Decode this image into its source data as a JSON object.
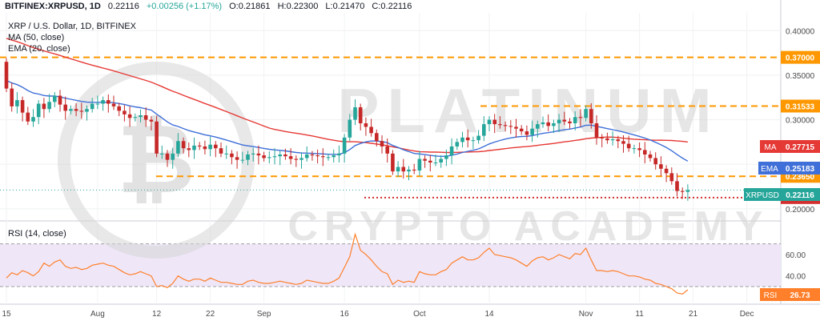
{
  "header": {
    "symbol": "BITFINEX:XRPUSD, 1D",
    "last": "0.22116",
    "change": "+0.00256 (+1.17%)",
    "o_label": "O:",
    "o": "0.21861",
    "h_label": "H:",
    "h": "0.22300",
    "l_label": "L:",
    "l": "0.21470",
    "c_label": "C:",
    "c": "0.22116"
  },
  "legend": {
    "title": "XRP / U.S. Dollar, 1D, BITFINEX",
    "ma": "MA (50, close)",
    "ema": "EMA (20, close)",
    "rsi": "RSI (14, close)"
  },
  "watermark": "PLATINUM CRYPTO ACADEMY",
  "colors": {
    "up": "#26a69a",
    "down": "#c62828",
    "ma": "#e53935",
    "ema": "#3f6fd8",
    "level": "#ff9800",
    "support": "#d32f2f",
    "rsi": "#ff7f2a",
    "rsi_band": "#efe7f8"
  },
  "chart_data": [
    {
      "type": "candlestick",
      "title": "XRP / U.S. Dollar, 1D, BITFINEX",
      "ylim": [
        0.19,
        0.42
      ],
      "y_ticks": [
        "0.20000",
        "0.25000",
        "0.30000",
        "0.35000",
        "0.40000"
      ],
      "x_ticks": [
        {
          "label": "15",
          "i": 0
        },
        {
          "label": "Aug",
          "i": 17
        },
        {
          "label": "12",
          "i": 28
        },
        {
          "label": "22",
          "i": 38
        },
        {
          "label": "Sep",
          "i": 48
        },
        {
          "label": "16",
          "i": 63
        },
        {
          "label": "Oct",
          "i": 77
        },
        {
          "label": "14",
          "i": 90
        },
        {
          "label": "Nov",
          "i": 108
        },
        {
          "label": "11",
          "i": 118
        },
        {
          "label": "21",
          "i": 128
        },
        {
          "label": "Dec",
          "i": 138
        }
      ],
      "close": [
        0.335,
        0.315,
        0.322,
        0.308,
        0.298,
        0.303,
        0.318,
        0.312,
        0.32,
        0.327,
        0.317,
        0.31,
        0.312,
        0.31,
        0.309,
        0.312,
        0.318,
        0.318,
        0.322,
        0.318,
        0.315,
        0.31,
        0.306,
        0.302,
        0.303,
        0.305,
        0.3,
        0.298,
        0.262,
        0.262,
        0.255,
        0.262,
        0.276,
        0.268,
        0.266,
        0.271,
        0.27,
        0.267,
        0.272,
        0.268,
        0.262,
        0.262,
        0.258,
        0.255,
        0.255,
        0.261,
        0.262,
        0.26,
        0.257,
        0.258,
        0.259,
        0.261,
        0.259,
        0.256,
        0.255,
        0.257,
        0.261,
        0.26,
        0.259,
        0.258,
        0.258,
        0.26,
        0.262,
        0.28,
        0.3,
        0.314,
        0.296,
        0.292,
        0.285,
        0.276,
        0.27,
        0.262,
        0.242,
        0.247,
        0.242,
        0.244,
        0.243,
        0.256,
        0.254,
        0.252,
        0.252,
        0.256,
        0.26,
        0.27,
        0.275,
        0.28,
        0.277,
        0.277,
        0.282,
        0.295,
        0.3,
        0.295,
        0.294,
        0.293,
        0.292,
        0.29,
        0.287,
        0.283,
        0.29,
        0.295,
        0.297,
        0.293,
        0.296,
        0.3,
        0.298,
        0.296,
        0.303,
        0.302,
        0.312,
        0.296,
        0.28,
        0.279,
        0.277,
        0.278,
        0.276,
        0.273,
        0.268,
        0.268,
        0.266,
        0.261,
        0.257,
        0.25,
        0.245,
        0.24,
        0.231,
        0.22,
        0.219,
        0.221
      ],
      "open_note": "open = previous close",
      "ma50": {
        "label": "MA",
        "last": "0.27715"
      },
      "ema20": {
        "label": "EMA",
        "last": "0.25183"
      },
      "levels": [
        {
          "value": 0.37,
          "label": "0.37000",
          "style": "dashed"
        },
        {
          "value": 0.31533,
          "label": "0.31533",
          "style": "dashed"
        },
        {
          "value": 0.2365,
          "label": "0.23650",
          "style": "dashed"
        },
        {
          "value": 0.21262,
          "label": "0.21262",
          "style": "dotted"
        }
      ],
      "last_price": {
        "label": "XRPUSD",
        "value": "0.22116"
      }
    },
    {
      "type": "line",
      "title": "RSI (14, close)",
      "ylim": [
        15,
        90
      ],
      "y_ticks": [
        "40.00",
        "60.00"
      ],
      "band": [
        30,
        70
      ],
      "last": "26.73",
      "values": [
        38,
        43,
        41,
        45,
        43,
        40,
        44,
        52,
        49,
        53,
        55,
        49,
        47,
        48,
        46,
        47,
        50,
        51,
        52,
        50,
        49,
        46,
        43,
        41,
        42,
        44,
        42,
        40,
        30,
        31,
        29,
        33,
        40,
        37,
        35,
        37,
        37,
        35,
        38,
        36,
        34,
        34,
        33,
        32,
        32,
        35,
        36,
        34,
        33,
        33,
        34,
        35,
        34,
        33,
        32,
        33,
        36,
        35,
        34,
        33,
        33,
        35,
        38,
        48,
        58,
        79,
        64,
        60,
        55,
        49,
        44,
        42,
        32,
        36,
        34,
        35,
        34,
        44,
        42,
        41,
        41,
        44,
        46,
        52,
        55,
        58,
        55,
        55,
        57,
        62,
        66,
        60,
        59,
        58,
        57,
        55,
        52,
        49,
        54,
        57,
        58,
        55,
        57,
        60,
        58,
        56,
        61,
        60,
        66,
        55,
        45,
        45,
        44,
        45,
        44,
        42,
        40,
        40,
        39,
        37,
        36,
        33,
        32,
        30,
        28,
        24,
        23,
        27
      ]
    }
  ]
}
